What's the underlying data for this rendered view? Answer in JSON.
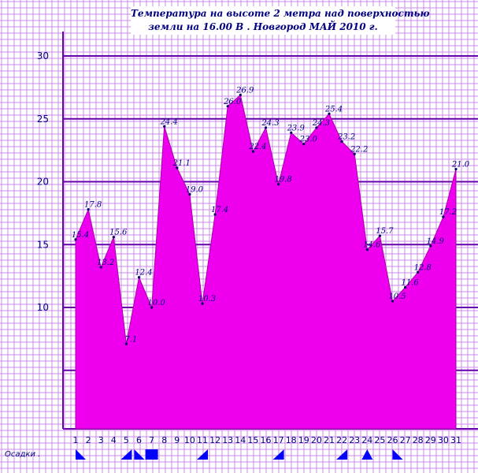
{
  "title": {
    "line1": "Температура на  высоте 2 метра над поверхностью",
    "line2": "земли на 16.00  В . Новгород       МАЙ       2010 г."
  },
  "precipitation_label": "Осадки .",
  "colors": {
    "grid_minor": "#cc88ee",
    "grid_major": "#6600aa",
    "area_fill": "#ee00ee",
    "area_stroke": "#aa00aa",
    "text": "#000080",
    "precip_marker": "#0000ff"
  },
  "chart_data": {
    "type": "area",
    "x": [
      1,
      2,
      3,
      4,
      5,
      6,
      7,
      8,
      9,
      10,
      11,
      12,
      13,
      14,
      15,
      16,
      17,
      18,
      19,
      20,
      21,
      22,
      23,
      24,
      25,
      26,
      27,
      28,
      29,
      30,
      31
    ],
    "y_tick_labels": [
      "10",
      "15",
      "20",
      "25",
      "30"
    ],
    "ylim": [
      5,
      30
    ],
    "series": [
      {
        "values": [
          15.4,
          17.8,
          13.2,
          15.6,
          7.1,
          12.4,
          10.0,
          24.4,
          21.1,
          19.0,
          10.3,
          17.4,
          26.0,
          26.9,
          22.4,
          24.3,
          19.8,
          23.9,
          23.0,
          24.3,
          25.4,
          23.2,
          22.2,
          14.6,
          15.7,
          10.5,
          11.6,
          12.8,
          14.9,
          17.2,
          21.0
        ],
        "labels": [
          "15.4",
          "17.8",
          "13.2",
          "15.6",
          "7.1",
          "12.4",
          "10.0",
          "24.4",
          "21.1",
          "19.0",
          "10.3",
          "17.4",
          "26.0",
          "26.9",
          "22.4",
          "24.3",
          "19.8",
          "23.9",
          "23.0",
          "24.3",
          "25.4",
          "23.2",
          "22.2",
          "14.6",
          "15.7",
          "10.5",
          "11.6",
          "12.8",
          "14.9",
          "17.2",
          "21.0"
        ]
      }
    ],
    "precipitation_days": [
      1,
      5,
      6,
      7,
      11,
      17,
      22,
      24,
      26
    ],
    "grid": true
  }
}
